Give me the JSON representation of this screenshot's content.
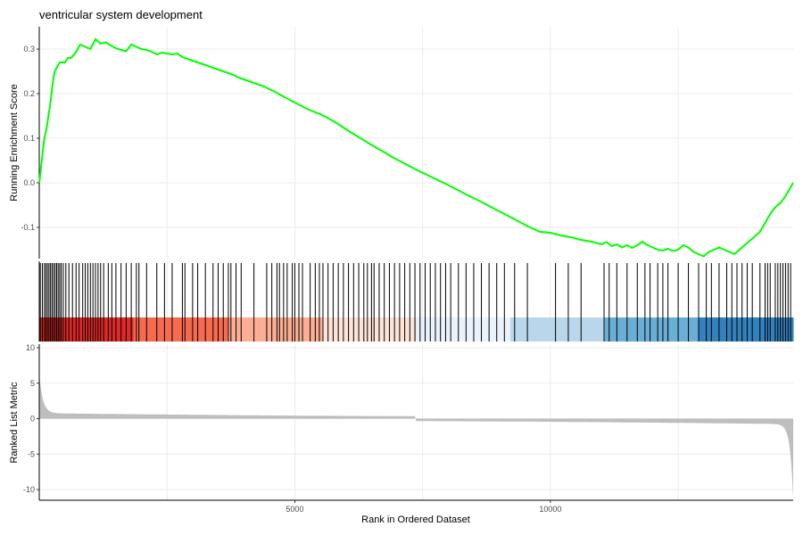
{
  "chart_data": {
    "type": "line",
    "title": "ventricular system development",
    "xlabel": "Rank in Ordered Dataset",
    "panels": [
      {
        "name": "running-enrichment",
        "ylabel": "Running Enrichment Score",
        "yticks": [
          -0.1,
          0.0,
          0.1,
          0.2,
          0.3
        ],
        "ylim": [
          -0.17,
          0.35
        ],
        "color": "#00ff00",
        "x": [
          0,
          20,
          60,
          100,
          140,
          180,
          220,
          260,
          300,
          350,
          400,
          450,
          500,
          560,
          620,
          700,
          800,
          900,
          1000,
          1100,
          1200,
          1300,
          1400,
          1500,
          1600,
          1700,
          1800,
          1900,
          2000,
          2100,
          2200,
          2300,
          2400,
          2500,
          2600,
          2700,
          2800,
          2900,
          3000,
          3100,
          3200,
          3300,
          3400,
          3500,
          3600,
          3700,
          3800,
          3900,
          4000,
          4100,
          4200,
          4300,
          4400,
          4500,
          4600,
          4700,
          4800,
          4900,
          5000,
          5100,
          5200,
          5300,
          5400,
          5500,
          5600,
          5700,
          5800,
          5900,
          6000,
          6100,
          6200,
          6300,
          6400,
          6500,
          6600,
          6700,
          6800,
          6900,
          7000,
          7200,
          7400,
          7600,
          7800,
          8000,
          8200,
          8400,
          8600,
          8800,
          9000,
          9200,
          9400,
          9600,
          9800,
          10000,
          10200,
          10400,
          10600,
          10800,
          11000,
          11100,
          11200,
          11300,
          11400,
          11500,
          11600,
          11700,
          11800,
          11900,
          12000,
          12100,
          12200,
          12300,
          12400,
          12500,
          12600,
          12700,
          12800,
          12900,
          13000,
          13100,
          13200,
          13300,
          13400,
          13500,
          13600,
          13700,
          13800,
          13900,
          14000,
          14100,
          14200,
          14300,
          14400,
          14500,
          14600,
          14700,
          14750
        ],
        "y": [
          0.0,
          0.02,
          0.06,
          0.1,
          0.12,
          0.15,
          0.18,
          0.22,
          0.25,
          0.26,
          0.27,
          0.27,
          0.27,
          0.28,
          0.28,
          0.29,
          0.31,
          0.305,
          0.3,
          0.322,
          0.312,
          0.315,
          0.308,
          0.302,
          0.298,
          0.295,
          0.31,
          0.305,
          0.3,
          0.298,
          0.294,
          0.288,
          0.292,
          0.29,
          0.288,
          0.29,
          0.282,
          0.278,
          0.274,
          0.27,
          0.266,
          0.262,
          0.258,
          0.254,
          0.25,
          0.246,
          0.242,
          0.236,
          0.232,
          0.228,
          0.224,
          0.22,
          0.216,
          0.21,
          0.205,
          0.198,
          0.192,
          0.186,
          0.18,
          0.174,
          0.168,
          0.163,
          0.158,
          0.154,
          0.148,
          0.142,
          0.135,
          0.128,
          0.12,
          0.113,
          0.106,
          0.099,
          0.092,
          0.085,
          0.078,
          0.072,
          0.065,
          0.058,
          0.052,
          0.04,
          0.028,
          0.017,
          0.006,
          -0.005,
          -0.017,
          -0.029,
          -0.04,
          -0.052,
          -0.064,
          -0.076,
          -0.088,
          -0.1,
          -0.11,
          -0.112,
          -0.118,
          -0.122,
          -0.128,
          -0.132,
          -0.138,
          -0.133,
          -0.142,
          -0.138,
          -0.145,
          -0.14,
          -0.146,
          -0.14,
          -0.132,
          -0.14,
          -0.145,
          -0.15,
          -0.152,
          -0.148,
          -0.153,
          -0.15,
          -0.14,
          -0.145,
          -0.155,
          -0.16,
          -0.165,
          -0.155,
          -0.15,
          -0.145,
          -0.15,
          -0.155,
          -0.16,
          -0.15,
          -0.14,
          -0.13,
          -0.12,
          -0.11,
          -0.09,
          -0.07,
          -0.055,
          -0.045,
          -0.03,
          -0.01,
          0.0
        ]
      },
      {
        "name": "hits",
        "hit_positions": [
          20,
          60,
          100,
          130,
          160,
          190,
          220,
          250,
          280,
          310,
          340,
          370,
          400,
          430,
          470,
          520,
          580,
          650,
          720,
          780,
          850,
          900,
          950,
          1000,
          1050,
          1100,
          1150,
          1200,
          1260,
          1350,
          1420,
          1500,
          1600,
          1700,
          1800,
          1900,
          1950,
          2100,
          2300,
          2450,
          2600,
          2800,
          2850,
          3000,
          3100,
          3250,
          3400,
          3500,
          3600,
          3700,
          3750,
          3850,
          3950,
          4200,
          4450,
          4550,
          4650,
          4700,
          4780,
          4850,
          4950,
          5000,
          5080,
          5150,
          5300,
          5400,
          5480,
          5550,
          5650,
          5750,
          5850,
          5950,
          6050,
          6150,
          6250,
          6350,
          6420,
          6500,
          6550,
          6650,
          6750,
          6850,
          6950,
          7050,
          7150,
          7250,
          7350,
          7450,
          7550,
          7650,
          7750,
          7850,
          7950,
          8050,
          8200,
          8350,
          8500,
          8650,
          8800,
          8950,
          9100,
          9300,
          9550,
          10100,
          10350,
          10600,
          11050,
          11150,
          11300,
          11500,
          11700,
          11850,
          11950,
          12100,
          12200,
          12300,
          12500,
          12700,
          12900,
          13050,
          13150,
          13300,
          13450,
          13550,
          13650,
          13750,
          13850,
          13950,
          14100,
          14200,
          14250,
          14300,
          14400,
          14450,
          14500,
          14550,
          14600,
          14650,
          14700
        ]
      },
      {
        "name": "ranked-list-metric",
        "ylabel": "Ranked List Metric",
        "yticks": [
          -10,
          -5,
          0,
          5,
          10
        ],
        "ylim": [
          -11.5,
          10.5
        ],
        "color": "#bebebe"
      }
    ],
    "x_range": [
      0,
      14750
    ],
    "xticks": [
      5000,
      10000
    ],
    "grid": true,
    "heat_band_colors": [
      "#dd2a29",
      "#f66b4f",
      "#fbae93",
      "#fde3d8",
      "#eaf2fc",
      "#bad6ea",
      "#6aaed6",
      "#3281bd"
    ]
  }
}
